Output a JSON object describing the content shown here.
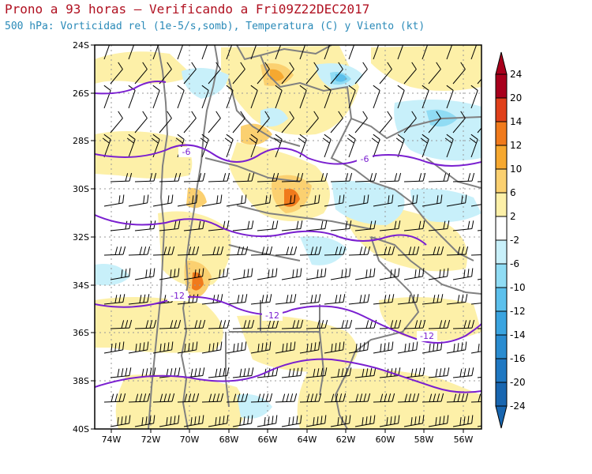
{
  "header": {
    "title": "Prono a 93 horas — Verificando a Fri09Z22DEC2017",
    "subtitle": "500 hPa: Vorticidad rel (1e-5/s,somb), Temperatura (C) y Viento (kt)"
  },
  "map": {
    "lat_ticks": [
      "24S",
      "26S",
      "28S",
      "30S",
      "32S",
      "34S",
      "36S",
      "38S",
      "40S"
    ],
    "lon_ticks": [
      "74W",
      "72W",
      "70W",
      "68W",
      "66W",
      "64W",
      "62W",
      "60W",
      "58W",
      "56W"
    ],
    "temperature_contour_labels": [
      "-6",
      "-6",
      "-12",
      "-12",
      "-12"
    ],
    "colors": {
      "temperature_contour": "#7a1fd0",
      "borders": "#808080",
      "wind_barbs": "#000000"
    }
  },
  "colorbar": {
    "labels": [
      "24",
      "20",
      "14",
      "12",
      "10",
      "6",
      "2",
      "-2",
      "-6",
      "-10",
      "-12",
      "-14",
      "-16",
      "-20",
      "-24"
    ],
    "colors": [
      "#a8001c",
      "#e0401a",
      "#f07a1c",
      "#f6a830",
      "#fbd070",
      "#fdf0a8",
      "#ffffff",
      "#c8f0fa",
      "#90dcf4",
      "#5cc0ec",
      "#3aa4e0",
      "#2a8cd0",
      "#1f78c2",
      "#1866b0"
    ]
  }
}
